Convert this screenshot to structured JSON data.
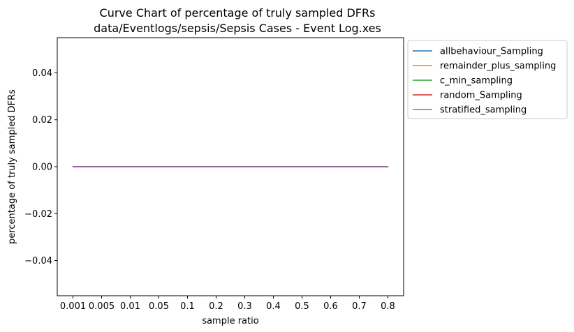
{
  "chart_data": {
    "type": "line",
    "title": "Curve Chart of percentage of truly sampled DFRs",
    "subtitle": "data/Eventlogs/sepsis/Sepsis Cases - Event Log.xes",
    "xlabel": "sample ratio",
    "ylabel": "percentage of truly sampled DFRs",
    "categories": [
      "0.001",
      "0.005",
      "0.01",
      "0.05",
      "0.1",
      "0.2",
      "0.3",
      "0.4",
      "0.5",
      "0.6",
      "0.7",
      "0.8"
    ],
    "ylim": [
      -0.055,
      0.055
    ],
    "yticks": [
      -0.04,
      -0.02,
      0.0,
      0.02,
      0.04
    ],
    "ytick_labels": [
      "−0.04",
      "−0.02",
      "0.00",
      "0.02",
      "0.04"
    ],
    "grid": false,
    "legend_position": "outside-top-right",
    "series": [
      {
        "name": "allbehaviour_Sampling",
        "color": "#1f77b4",
        "values": [
          0,
          0,
          0,
          0,
          0,
          0,
          0,
          0,
          0,
          0,
          0,
          0
        ]
      },
      {
        "name": "remainder_plus_sampling",
        "color": "#ff7f0e",
        "values": [
          0,
          0,
          0,
          0,
          0,
          0,
          0,
          0,
          0,
          0,
          0,
          0
        ]
      },
      {
        "name": "c_min_sampling",
        "color": "#2ca02c",
        "values": [
          0,
          0,
          0,
          0,
          0,
          0,
          0,
          0,
          0,
          0,
          0,
          0
        ]
      },
      {
        "name": "random_Sampling",
        "color": "#d62728",
        "values": [
          0,
          0,
          0,
          0,
          0,
          0,
          0,
          0,
          0,
          0,
          0,
          0
        ]
      },
      {
        "name": "stratified_sampling",
        "color": "#9467bd",
        "values": [
          0,
          0,
          0,
          0,
          0,
          0,
          0,
          0,
          0,
          0,
          0,
          0
        ]
      }
    ]
  }
}
